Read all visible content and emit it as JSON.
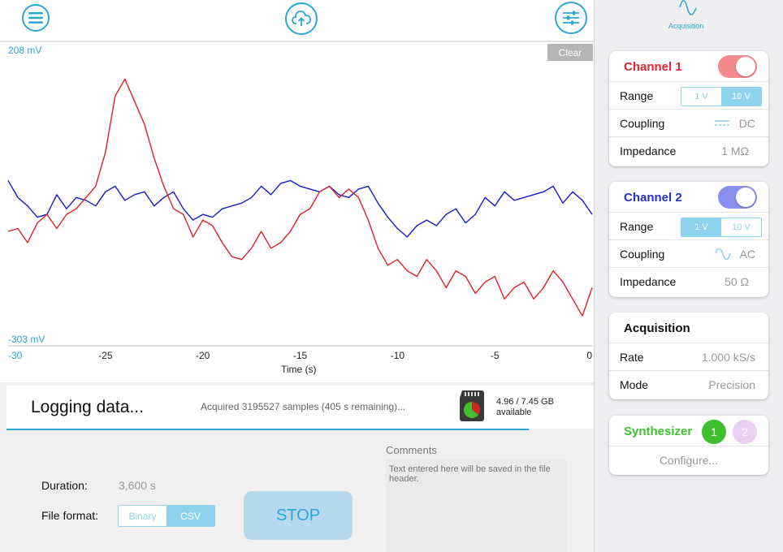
{
  "chart_data": {
    "type": "line",
    "xlabel": "Time (s)",
    "xlim": [
      -30,
      0
    ],
    "ylim": [
      -303,
      208
    ],
    "y_unit": "mV",
    "y_max_label": "208 mV",
    "y_min_label": "-303 mV",
    "x_ticks": [
      "-30",
      "-25",
      "-20",
      "-15",
      "-10",
      "-5",
      "0"
    ],
    "x_tick_values": [
      -30,
      -25,
      -20,
      -15,
      -10,
      -5,
      0
    ],
    "series": [
      {
        "color": "#1a1acb",
        "x": [
          -30,
          -29.5,
          -29,
          -28.5,
          -28,
          -27.5,
          -27,
          -26.5,
          -26,
          -25.5,
          -25,
          -24.5,
          -24,
          -23.5,
          -23,
          -22.5,
          -22,
          -21.5,
          -21,
          -20.5,
          -20,
          -19.5,
          -19,
          -18.5,
          -18,
          -17.5,
          -17,
          -16.5,
          -16,
          -15.5,
          -15,
          -14.5,
          -14,
          -13.5,
          -13,
          -12.5,
          -12,
          -11.5,
          -11,
          -10.5,
          -10,
          -9.5,
          -9,
          -8.5,
          -8,
          -7.5,
          -7,
          -6.5,
          -6,
          -5.5,
          -5,
          -4.5,
          -4,
          -3.5,
          -3,
          -2.5,
          -2,
          -1.5,
          -1,
          -0.5,
          0
        ],
        "y": [
          -10,
          -40,
          -55,
          -75,
          -70,
          -35,
          -60,
          -40,
          -45,
          -55,
          -30,
          -20,
          -45,
          -35,
          -30,
          -55,
          -40,
          -30,
          -60,
          -80,
          -70,
          -75,
          -60,
          -55,
          -50,
          -40,
          -20,
          -35,
          -15,
          -10,
          -20,
          -25,
          -30,
          -20,
          -35,
          -40,
          -25,
          -20,
          -50,
          -75,
          -95,
          -110,
          -90,
          -80,
          -90,
          -70,
          -60,
          -85,
          -70,
          -40,
          -55,
          -30,
          -45,
          -40,
          -35,
          -30,
          -20,
          -50,
          -30,
          -45,
          -70
        ]
      },
      {
        "color": "#e01f2a",
        "x": [
          -30,
          -29.5,
          -29,
          -28.5,
          -28,
          -27.5,
          -27,
          -26.5,
          -26,
          -25.5,
          -25,
          -24.5,
          -24,
          -23.5,
          -23,
          -22.5,
          -22,
          -21.5,
          -21,
          -20.5,
          -20,
          -19.5,
          -19,
          -18.5,
          -18,
          -17.5,
          -17,
          -16.5,
          -16,
          -15.5,
          -15,
          -14.5,
          -14,
          -13.5,
          -13,
          -12.5,
          -12,
          -11.5,
          -11,
          -10.5,
          -10,
          -9.5,
          -9,
          -8.5,
          -8,
          -7.5,
          -7,
          -6.5,
          -6,
          -5.5,
          -5,
          -4.5,
          -4,
          -3.5,
          -3,
          -2.5,
          -2,
          -1.5,
          -1,
          -0.5,
          0
        ],
        "y": [
          -100,
          -95,
          -120,
          -85,
          -70,
          -95,
          -70,
          -60,
          -40,
          -20,
          40,
          140,
          170,
          130,
          90,
          30,
          -20,
          -60,
          -70,
          -110,
          -80,
          -90,
          -120,
          -145,
          -150,
          -130,
          -100,
          -130,
          -120,
          -100,
          -70,
          -60,
          -30,
          -20,
          -40,
          -25,
          -40,
          -80,
          -130,
          -160,
          -150,
          -170,
          -180,
          -150,
          -170,
          -200,
          -170,
          -180,
          -210,
          -190,
          -180,
          -220,
          -200,
          -190,
          -220,
          -200,
          -170,
          -190,
          -220,
          -250,
          -200
        ]
      }
    ]
  },
  "toolbar": {
    "menu_icon": "menu-icon",
    "upload_icon": "cloud-upload-icon",
    "settings_icon": "sliders-icon"
  },
  "plot": {
    "clear_label": "Clear"
  },
  "logging": {
    "title": "Logging data...",
    "status": "Acquired 3195527 samples (405 s remaining)...",
    "storage_line1": "4.96 / 7.45 GB",
    "storage_line2": "available",
    "progress_fraction": 0.89
  },
  "settings": {
    "duration_label": "Duration:",
    "duration_value": "3,600 s",
    "format_label": "File format:",
    "format_options": [
      "Binary",
      "CSV"
    ],
    "format_selected": "CSV",
    "stop_label": "STOP",
    "comments_label": "Comments",
    "comments_placeholder": "Text entered here will be saved in the file header."
  },
  "sidebar": {
    "tab_label": "Acquisition",
    "channel1": {
      "title": "Channel 1",
      "color": "#e8222e",
      "range_label": "Range",
      "range_options": [
        "1 V",
        "10 V"
      ],
      "range_selected": "10 V",
      "coupling_label": "Coupling",
      "coupling_value": "DC",
      "impedance_label": "Impedance",
      "impedance_value": "1 MΩ"
    },
    "channel2": {
      "title": "Channel 2",
      "color": "#2432c8",
      "range_label": "Range",
      "range_options": [
        "1 V",
        "10 V"
      ],
      "range_selected": "1 V",
      "coupling_label": "Coupling",
      "coupling_value": "AC",
      "impedance_label": "Impedance",
      "impedance_value": "50 Ω"
    },
    "acquisition": {
      "title": "Acquisition",
      "rate_label": "Rate",
      "rate_value": "1.000 kS/s",
      "mode_label": "Mode",
      "mode_value": "Precision"
    },
    "synthesizer": {
      "title": "Synthesizer",
      "badge1": "1",
      "badge2": "2",
      "configure_label": "Configure..."
    }
  }
}
